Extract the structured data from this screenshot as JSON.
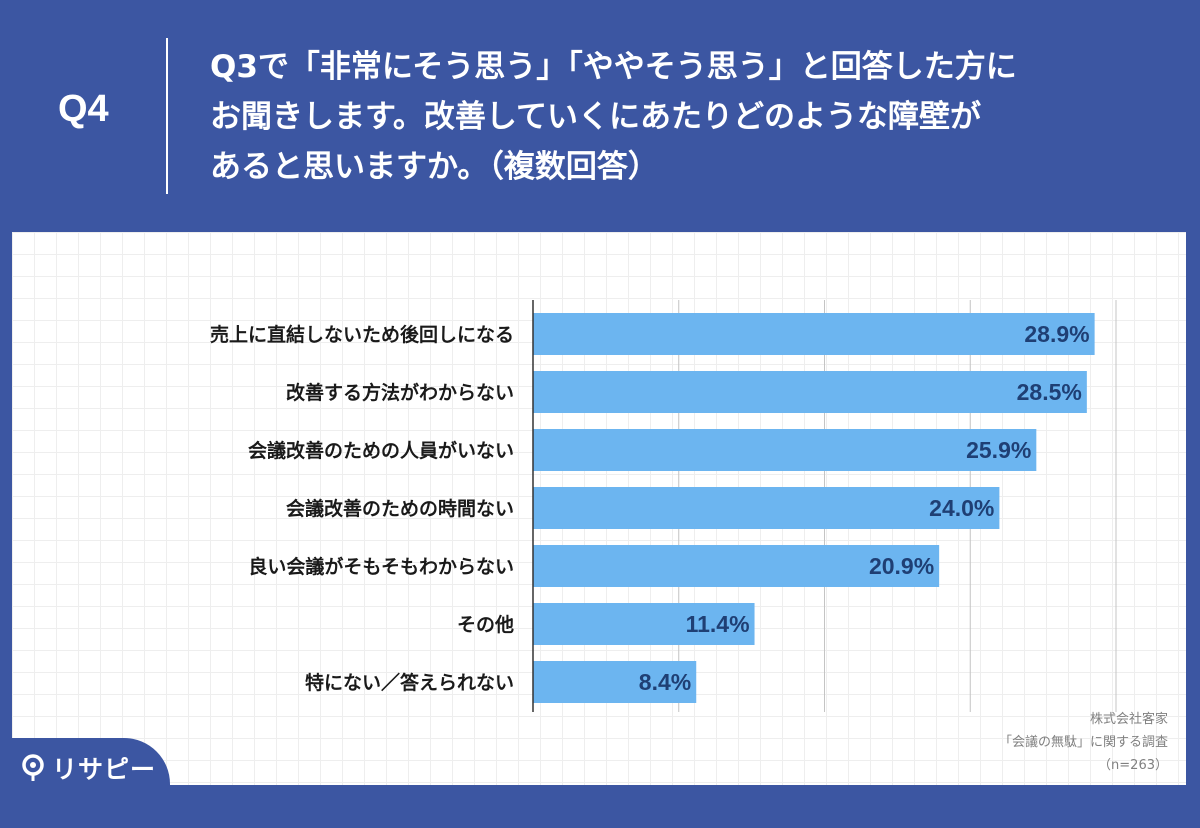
{
  "header": {
    "q_label": "Q4",
    "question_lines": [
      "Q3で「非常にそう思う」「ややそう思う」と回答した方に",
      "お聞きします。改善していくにあたりどのような障壁が",
      "あると思いますか。（複数回答）"
    ]
  },
  "source": {
    "lines": [
      "株式会社客家",
      "「会議の無駄」に関する調査",
      "（n=263）"
    ]
  },
  "logo": {
    "text": "リサピー",
    "icon": "pin-icon"
  },
  "colors": {
    "background": "#3c56a2",
    "bar": "#6cb5f0",
    "value_text": "#1f3f74"
  },
  "chart_data": {
    "type": "bar",
    "orientation": "horizontal",
    "categories": [
      "売上に直結しないため後回しになる",
      "改善する方法がわからない",
      "会議改善のための人員がいない",
      "会議改善のための時間ない",
      "良い会議がそもそもわからない",
      "その他",
      "特にない／答えられない"
    ],
    "values": [
      28.9,
      28.5,
      25.9,
      24.0,
      20.9,
      11.4,
      8.4
    ],
    "value_labels": [
      "28.9%",
      "28.5%",
      "25.9%",
      "24.0%",
      "20.9%",
      "11.4%",
      "8.4%"
    ],
    "xlim": [
      0,
      30
    ],
    "grid": true,
    "gridlines_at": [
      0,
      7.5,
      15,
      22.5,
      30
    ],
    "tick_labels_shown": false,
    "legend": "none"
  }
}
